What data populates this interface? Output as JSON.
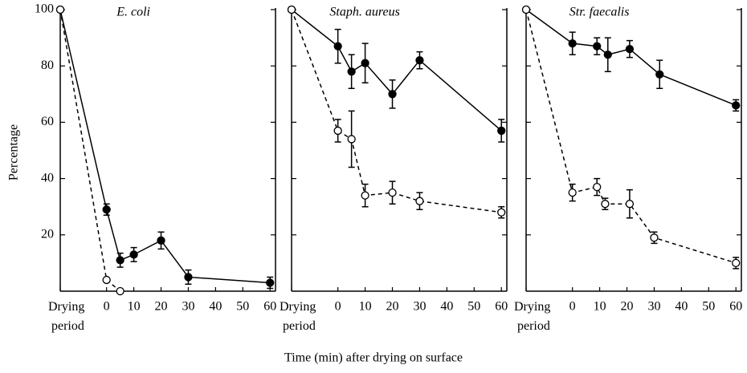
{
  "xlabel": "Time (min) after drying on surface",
  "chart_data": [
    {
      "type": "line",
      "title": "E. coli",
      "ylabel": "Percentage",
      "ytick_labels": true,
      "xlim": [
        -17,
        62
      ],
      "ylim": [
        0,
        100
      ],
      "xticks": [
        {
          "value": -17,
          "label": "Drying period"
        },
        0,
        10,
        20,
        30,
        40,
        50,
        60
      ],
      "yticks": [
        20,
        40,
        60,
        80,
        100
      ],
      "series": [
        {
          "marker": "filled",
          "dash": false,
          "color": "#000",
          "x": [
            -17,
            0,
            5,
            10,
            20,
            30,
            60
          ],
          "values": [
            100,
            29,
            11,
            13,
            18,
            5,
            3
          ],
          "errors": [
            null,
            2,
            2.5,
            2.5,
            3,
            2.5,
            2
          ]
        },
        {
          "marker": "open",
          "dash": true,
          "color": "#000",
          "x": [
            -17,
            0,
            5
          ],
          "values": [
            100,
            4,
            0
          ],
          "errors": [
            null,
            null,
            null
          ]
        }
      ]
    },
    {
      "type": "line",
      "title": "Staph. aureus",
      "ytick_labels": false,
      "xlim": [
        -17,
        62
      ],
      "ylim": [
        0,
        100
      ],
      "xticks": [
        {
          "value": -17,
          "label": "Drying period"
        },
        0,
        10,
        20,
        30,
        40,
        50,
        60
      ],
      "yticks": [
        20,
        40,
        60,
        80,
        100
      ],
      "series": [
        {
          "marker": "filled",
          "dash": false,
          "color": "#000",
          "x": [
            -17,
            0,
            5,
            10,
            20,
            30,
            60
          ],
          "values": [
            100,
            87,
            78,
            81,
            70,
            82,
            57
          ],
          "errors": [
            null,
            6,
            6,
            7,
            5,
            3,
            4
          ]
        },
        {
          "marker": "open",
          "dash": true,
          "color": "#000",
          "x": [
            -17,
            0,
            5,
            10,
            20,
            30,
            60
          ],
          "values": [
            100,
            57,
            54,
            34,
            35,
            32,
            28
          ],
          "errors": [
            null,
            4,
            10,
            4,
            4,
            3,
            2
          ]
        }
      ]
    },
    {
      "type": "line",
      "title": "Str. faecalis",
      "ytick_labels": false,
      "xlim": [
        -17,
        62
      ],
      "ylim": [
        0,
        100
      ],
      "xticks": [
        {
          "value": -17,
          "label": "Drying period"
        },
        0,
        10,
        20,
        30,
        40,
        50,
        60
      ],
      "yticks": [
        20,
        40,
        60,
        80,
        100
      ],
      "series": [
        {
          "marker": "filled",
          "dash": false,
          "color": "#000",
          "x": [
            -17,
            0,
            9,
            13,
            21,
            32,
            60
          ],
          "values": [
            100,
            88,
            87,
            84,
            86,
            77,
            66
          ],
          "errors": [
            null,
            4,
            3,
            6,
            3,
            5,
            2
          ]
        },
        {
          "marker": "open",
          "dash": true,
          "color": "#000",
          "x": [
            -17,
            0,
            9,
            12,
            21,
            30,
            60
          ],
          "values": [
            100,
            35,
            37,
            31,
            31,
            19,
            10
          ],
          "errors": [
            null,
            3,
            3,
            2,
            5,
            2,
            2
          ]
        }
      ]
    }
  ]
}
